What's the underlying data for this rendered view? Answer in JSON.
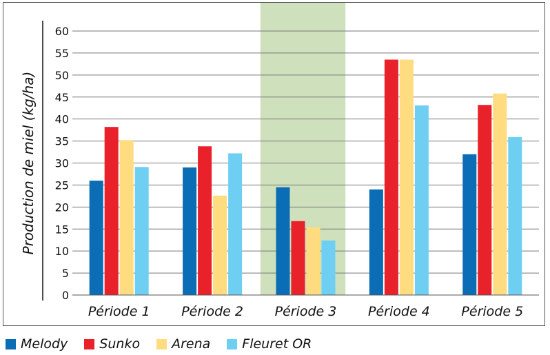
{
  "chart_data": {
    "type": "bar",
    "title": "",
    "xlabel": "",
    "ylabel": "Production de miel (kg/ha)",
    "ylim": [
      0,
      60
    ],
    "yticks": [
      0,
      5,
      10,
      15,
      20,
      25,
      30,
      35,
      40,
      45,
      50,
      55,
      60
    ],
    "grid": true,
    "legend_position": "bottom",
    "highlighted_category": "Période 3",
    "highlight_color": "#cfe0bd",
    "categories": [
      "Période 1",
      "Période 2",
      "Période 3",
      "Période 4",
      "Période 5"
    ],
    "series": [
      {
        "name": "Melody",
        "color": "#0a6db5",
        "values": [
          26,
          29,
          24.5,
          24,
          32
        ]
      },
      {
        "name": "Sunko",
        "color": "#e8212a",
        "values": [
          38.2,
          33.8,
          16.8,
          53.5,
          43.2
        ]
      },
      {
        "name": "Arena",
        "color": "#fedc7f",
        "values": [
          35.2,
          22.6,
          15.4,
          53.5,
          45.8
        ]
      },
      {
        "name": "Fleuret OR",
        "color": "#6fcff3",
        "values": [
          29.1,
          32.2,
          12.4,
          43.1,
          35.9
        ]
      }
    ]
  }
}
